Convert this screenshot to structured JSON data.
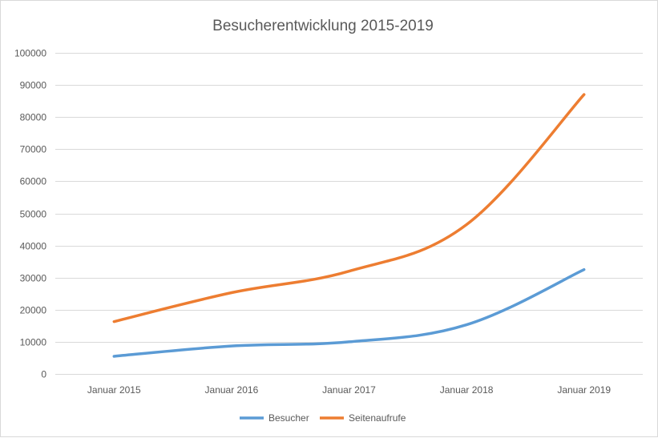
{
  "chart_data": {
    "type": "line",
    "title": "Besucherentwicklung 2015-2019",
    "xlabel": "",
    "ylabel": "",
    "categories": [
      "Januar 2015",
      "Januar 2016",
      "Januar 2017",
      "Januar 2018",
      "Januar 2019"
    ],
    "ylim": [
      0,
      100000
    ],
    "yticks": [
      0,
      10000,
      20000,
      30000,
      40000,
      50000,
      60000,
      70000,
      80000,
      90000,
      100000
    ],
    "ytick_labels": [
      "0",
      "10000",
      "20000",
      "30000",
      "40000",
      "50000",
      "60000",
      "70000",
      "80000",
      "90000",
      "100000"
    ],
    "grid": true,
    "legend_position": "bottom",
    "series": [
      {
        "name": "Besucher",
        "color": "#5b9bd5",
        "values": [
          5500,
          8700,
          10000,
          15300,
          32500
        ]
      },
      {
        "name": "Seitenaufrufe",
        "color": "#ed7d31",
        "values": [
          16300,
          25300,
          32000,
          46500,
          87000
        ]
      }
    ]
  }
}
